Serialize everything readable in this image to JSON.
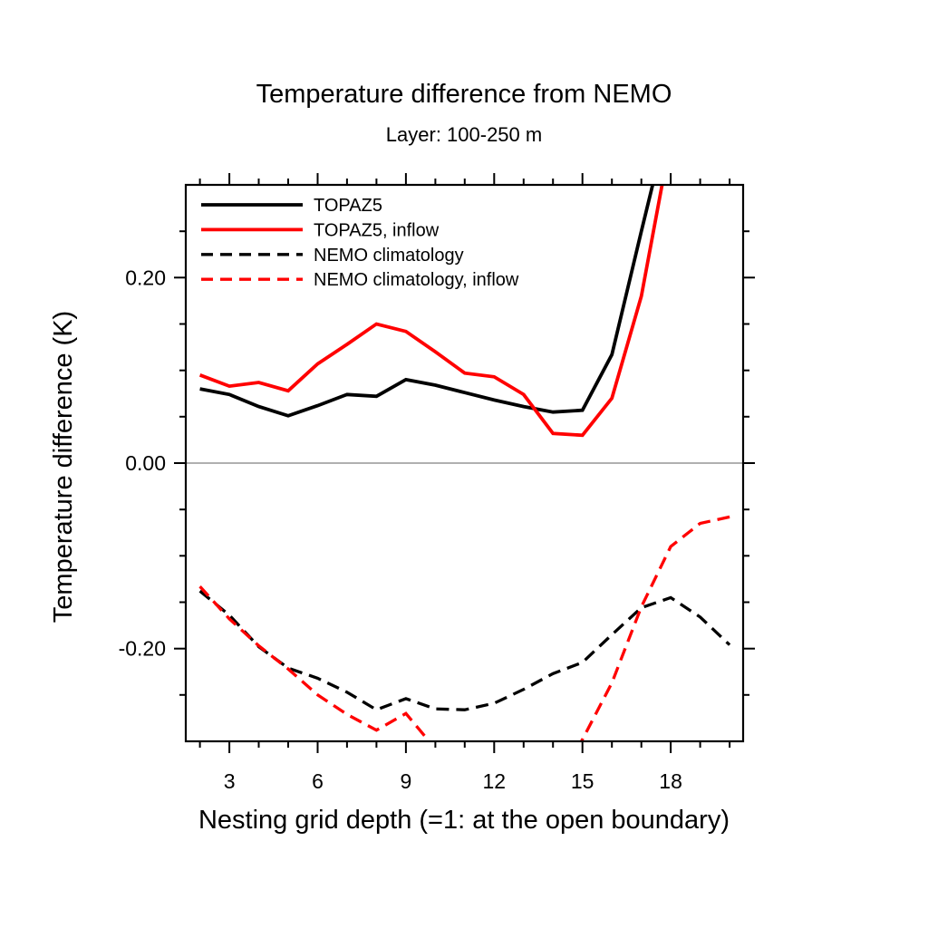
{
  "chart_data": {
    "type": "line",
    "title": "Temperature difference from NEMO",
    "subtitle": "Layer: 100-250 m",
    "xlabel": "Nesting grid depth (=1: at the open boundary)",
    "ylabel": "Temperature difference (K)",
    "xlim": [
      1.52,
      20.46
    ],
    "ylim": [
      -0.3,
      0.3
    ],
    "grid": "zero-line-only",
    "zero_line_value": 0.0,
    "zero_line_color": "#b0b0b0",
    "frame_color": "#000000",
    "legend_position": "top-left-inside",
    "x_axis": {
      "major_ticks": [
        3,
        6,
        9,
        12,
        15,
        18
      ],
      "major_tick_labels": [
        "3",
        "6",
        "9",
        "12",
        "15",
        "18"
      ],
      "minor_ticks": [
        2,
        4,
        5,
        7,
        8,
        10,
        11,
        13,
        14,
        16,
        17,
        19,
        20
      ]
    },
    "y_axis": {
      "major_ticks": [
        0.2,
        0.0,
        -0.2
      ],
      "major_tick_labels": [
        "0.20",
        "0.00",
        "-0.20"
      ],
      "minor_ticks": [
        0.25,
        0.15,
        0.1,
        0.05,
        -0.05,
        -0.1,
        -0.15,
        -0.25
      ]
    },
    "series": [
      {
        "name": "TOPAZ5",
        "color": "#000000",
        "style": "solid",
        "x": [
          2,
          3,
          4,
          5,
          6,
          7,
          8,
          9,
          10,
          11,
          12,
          13,
          14,
          15,
          16,
          17,
          18
        ],
        "y": [
          0.08,
          0.074,
          0.061,
          0.051,
          0.062,
          0.074,
          0.072,
          0.09,
          0.084,
          0.076,
          0.068,
          0.061,
          0.055,
          0.057,
          0.117,
          0.25,
          0.38
        ],
        "clipped_above_ymax": true
      },
      {
        "name": "TOPAZ5, inflow",
        "color": "#ff0000",
        "style": "solid",
        "x": [
          2,
          3,
          4,
          5,
          6,
          7,
          8,
          9,
          10,
          11,
          12,
          13,
          14,
          15,
          16,
          17,
          18
        ],
        "y": [
          0.095,
          0.083,
          0.087,
          0.078,
          0.107,
          0.128,
          0.15,
          0.142,
          0.12,
          0.097,
          0.093,
          0.074,
          0.032,
          0.03,
          0.07,
          0.18,
          0.35
        ],
        "clipped_above_ymax": true
      },
      {
        "name": "NEMO climatology",
        "color": "#000000",
        "style": "dashed",
        "x": [
          2,
          3,
          4,
          5,
          6,
          7,
          8,
          9,
          10,
          11,
          12,
          13,
          14,
          15,
          16,
          17,
          18,
          19,
          20
        ],
        "y": [
          -0.138,
          -0.164,
          -0.198,
          -0.221,
          -0.232,
          -0.247,
          -0.266,
          -0.254,
          -0.265,
          -0.266,
          -0.259,
          -0.244,
          -0.227,
          -0.215,
          -0.185,
          -0.156,
          -0.145,
          -0.166,
          -0.196
        ],
        "clipped_above_ymax": false
      },
      {
        "name": "NEMO climatology, inflow",
        "color": "#ff0000",
        "style": "dashed",
        "x": [
          2,
          3,
          4,
          5,
          6,
          7,
          8,
          9,
          10,
          11,
          12,
          13,
          14,
          15,
          16,
          17,
          18,
          19,
          20
        ],
        "y": [
          -0.133,
          -0.168,
          -0.197,
          -0.222,
          -0.25,
          -0.271,
          -0.288,
          -0.27,
          -0.308,
          -0.325,
          -0.335,
          -0.345,
          -0.35,
          -0.298,
          -0.237,
          -0.155,
          -0.09,
          -0.065,
          -0.058
        ],
        "clipped_below_ymin": true
      }
    ]
  }
}
